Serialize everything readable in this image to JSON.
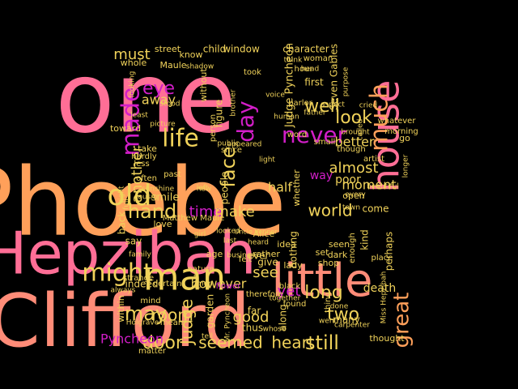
{
  "palette": {
    "pink": "#ff6e96",
    "salmon": "#ff8c78",
    "orange": "#ffa05a",
    "yellow": "#f0d25a",
    "magenta": "#d21ec8",
    "violet": "#b400b4",
    "background": "#000000"
  },
  "words": [
    {
      "text": "one",
      "color": "pink"
    },
    {
      "text": "Phœbe",
      "color": "orange"
    },
    {
      "text": "Hepzibah",
      "color": "pink"
    },
    {
      "text": "Clifford",
      "color": "salmon"
    },
    {
      "text": "house",
      "color": "pink"
    },
    {
      "text": "little",
      "color": "salmon"
    },
    {
      "text": "man",
      "color": "yellow"
    },
    {
      "text": "might",
      "color": "yellow"
    },
    {
      "text": "old",
      "color": "yellow"
    },
    {
      "text": "much",
      "color": "orange"
    },
    {
      "text": "never",
      "color": "magenta"
    },
    {
      "text": "life",
      "color": "yellow"
    },
    {
      "text": "made",
      "color": "magenta"
    },
    {
      "text": "day",
      "color": "magenta"
    },
    {
      "text": "hand",
      "color": "yellow"
    },
    {
      "text": "long",
      "color": "yellow"
    },
    {
      "text": "yet",
      "color": "magenta"
    },
    {
      "text": "great",
      "color": "orange"
    },
    {
      "text": "still",
      "color": "yellow"
    },
    {
      "text": "may",
      "color": "yellow"
    },
    {
      "text": "door",
      "color": "yellow"
    },
    {
      "text": "heart",
      "color": "yellow"
    },
    {
      "text": "seemed",
      "color": "yellow"
    },
    {
      "text": "room",
      "color": "yellow"
    },
    {
      "text": "Judge",
      "color": "yellow"
    },
    {
      "text": "face",
      "color": "yellow"
    },
    {
      "text": "another",
      "color": "yellow"
    },
    {
      "text": "time",
      "color": "magenta"
    },
    {
      "text": "make",
      "color": "yellow"
    },
    {
      "text": "world",
      "color": "yellow"
    },
    {
      "text": "look",
      "color": "yellow"
    },
    {
      "text": "well",
      "color": "yellow"
    },
    {
      "text": "eye",
      "color": "magenta"
    },
    {
      "text": "must",
      "color": "yellow"
    },
    {
      "text": "away",
      "color": "yellow"
    },
    {
      "text": "moment",
      "color": "yellow"
    },
    {
      "text": "however",
      "color": "yellow"
    },
    {
      "text": "see",
      "color": "yellow"
    },
    {
      "text": "half",
      "color": "yellow"
    },
    {
      "text": "two",
      "color": "yellow"
    },
    {
      "text": "good",
      "color": "yellow"
    },
    {
      "text": "better",
      "color": "yellow"
    },
    {
      "text": "almost",
      "color": "yellow"
    },
    {
      "text": "Pyncheon",
      "color": "magenta"
    },
    {
      "text": "Judge Pyncheon",
      "color": "yellow"
    },
    {
      "text": "character",
      "color": "yellow"
    },
    {
      "text": "window",
      "color": "yellow"
    },
    {
      "text": "child",
      "color": "yellow"
    },
    {
      "text": "street",
      "color": "yellow"
    },
    {
      "text": "know",
      "color": "yellow"
    },
    {
      "text": "whole",
      "color": "yellow"
    },
    {
      "text": "Maule",
      "color": "yellow"
    },
    {
      "text": "without",
      "color": "yellow"
    },
    {
      "text": "first",
      "color": "yellow"
    },
    {
      "text": "Seven Gables",
      "color": "yellow"
    },
    {
      "text": "toward",
      "color": "yellow"
    },
    {
      "text": "take",
      "color": "yellow"
    },
    {
      "text": "way",
      "color": "magenta"
    },
    {
      "text": "poor",
      "color": "yellow"
    },
    {
      "text": "come",
      "color": "yellow"
    },
    {
      "text": "kind",
      "color": "yellow"
    },
    {
      "text": "perhaps",
      "color": "yellow"
    },
    {
      "text": "thought",
      "color": "yellow"
    },
    {
      "text": "death",
      "color": "yellow"
    },
    {
      "text": "many",
      "color": "yellow"
    },
    {
      "text": "thus",
      "color": "yellow"
    },
    {
      "text": "far",
      "color": "yellow"
    },
    {
      "text": "along",
      "color": "yellow"
    },
    {
      "text": "indeed",
      "color": "yellow"
    },
    {
      "text": "within",
      "color": "yellow"
    },
    {
      "text": "say",
      "color": "yellow"
    },
    {
      "text": "back",
      "color": "yellow"
    },
    {
      "text": "smile",
      "color": "yellow"
    },
    {
      "text": "nothing",
      "color": "yellow"
    },
    {
      "text": "ever",
      "color": "yellow"
    },
    {
      "text": "give",
      "color": "yellow"
    },
    {
      "text": "lady",
      "color": "yellow"
    },
    {
      "text": "people",
      "color": "yellow"
    },
    {
      "text": "figure",
      "color": "yellow"
    },
    {
      "text": "person",
      "color": "yellow"
    },
    {
      "text": "whether",
      "color": "yellow"
    },
    {
      "text": "garden",
      "color": "yellow"
    },
    {
      "text": "age",
      "color": "yellow"
    },
    {
      "text": "nature",
      "color": "yellow"
    },
    {
      "text": "rather",
      "color": "yellow"
    },
    {
      "text": "set",
      "color": "yellow"
    },
    {
      "text": "shop",
      "color": "yellow"
    },
    {
      "text": "dark",
      "color": "yellow"
    },
    {
      "text": "seen",
      "color": "yellow"
    },
    {
      "text": "word",
      "color": "yellow"
    },
    {
      "text": "hardly",
      "color": "yellow"
    },
    {
      "text": "less",
      "color": "yellow"
    },
    {
      "text": "often",
      "color": "yellow"
    },
    {
      "text": "past",
      "color": "yellow"
    },
    {
      "text": "since",
      "color": "yellow"
    },
    {
      "text": "artist",
      "color": "yellow"
    },
    {
      "text": "though",
      "color": "yellow"
    },
    {
      "text": "small",
      "color": "yellow"
    },
    {
      "text": "go",
      "color": "yellow"
    },
    {
      "text": "whatever",
      "color": "yellow"
    },
    {
      "text": "morning",
      "color": "yellow"
    },
    {
      "text": "open",
      "color": "yellow"
    },
    {
      "text": "place",
      "color": "yellow"
    },
    {
      "text": "enough",
      "color": "yellow"
    },
    {
      "text": "strange",
      "color": "yellow"
    },
    {
      "text": "certain",
      "color": "yellow"
    },
    {
      "text": "mind",
      "color": "yellow"
    },
    {
      "text": "black",
      "color": "yellow"
    },
    {
      "text": "therefore",
      "color": "yellow"
    },
    {
      "text": "idea",
      "color": "yellow"
    },
    {
      "text": "Alice",
      "color": "yellow"
    },
    {
      "text": "found",
      "color": "yellow"
    },
    {
      "text": "thing",
      "color": "yellow"
    },
    {
      "text": "matter",
      "color": "yellow"
    },
    {
      "text": "Uncle Venner",
      "color": "yellow"
    },
    {
      "text": "Matthew Maule",
      "color": "yellow"
    },
    {
      "text": "flower",
      "color": "magenta"
    },
    {
      "text": "mean",
      "color": "yellow"
    },
    {
      "text": "felt",
      "color": "yellow"
    },
    {
      "text": "woman",
      "color": "yellow"
    },
    {
      "text": "hour",
      "color": "yellow"
    },
    {
      "text": "took",
      "color": "yellow"
    },
    {
      "text": "think",
      "color": "yellow"
    },
    {
      "text": "head",
      "color": "yellow"
    },
    {
      "text": "parlor",
      "color": "yellow"
    },
    {
      "text": "love",
      "color": "yellow"
    },
    {
      "text": "full",
      "color": "yellow"
    },
    {
      "text": "beautiful",
      "color": "yellow"
    },
    {
      "text": "sunshine",
      "color": "yellow"
    },
    {
      "text": "shadow",
      "color": "yellow"
    },
    {
      "text": "looking",
      "color": "yellow"
    },
    {
      "text": "stood",
      "color": "yellow"
    },
    {
      "text": "brother",
      "color": "yellow"
    },
    {
      "text": "human",
      "color": "yellow"
    },
    {
      "text": "purpose",
      "color": "yellow"
    },
    {
      "text": "aspect",
      "color": "yellow"
    },
    {
      "text": "picture",
      "color": "yellow"
    },
    {
      "text": "longer",
      "color": "yellow"
    },
    {
      "text": "new",
      "color": "yellow"
    },
    {
      "text": "right",
      "color": "yellow"
    },
    {
      "text": "cousin",
      "color": "yellow"
    },
    {
      "text": "business",
      "color": "yellow"
    },
    {
      "text": "looked",
      "color": "yellow"
    },
    {
      "text": "last",
      "color": "yellow"
    },
    {
      "text": "every",
      "color": "yellow"
    },
    {
      "text": "went",
      "color": "yellow"
    },
    {
      "text": "Miss Hepzibah",
      "color": "yellow"
    },
    {
      "text": "Holgrave",
      "color": "yellow"
    },
    {
      "text": "Mr. Pyncheon",
      "color": "yellow"
    },
    {
      "text": "together",
      "color": "yellow"
    },
    {
      "text": "father",
      "color": "yellow"
    },
    {
      "text": "brought",
      "color": "yellow"
    },
    {
      "text": "voice",
      "color": "yellow"
    },
    {
      "text": "cried",
      "color": "yellow"
    },
    {
      "text": "men",
      "color": "yellow"
    },
    {
      "text": "part",
      "color": "yellow"
    },
    {
      "text": "heard",
      "color": "yellow"
    },
    {
      "text": "whose",
      "color": "yellow"
    },
    {
      "text": "always",
      "color": "yellow"
    },
    {
      "text": "called",
      "color": "yellow"
    },
    {
      "text": "tell",
      "color": "yellow"
    },
    {
      "text": "done",
      "color": "yellow"
    },
    {
      "text": "carpenter",
      "color": "yellow"
    },
    {
      "text": "town",
      "color": "yellow"
    },
    {
      "text": "public",
      "color": "yellow"
    },
    {
      "text": "least",
      "color": "yellow"
    },
    {
      "text": "girl",
      "color": "yellow"
    },
    {
      "text": "family",
      "color": "yellow"
    },
    {
      "text": "appeared",
      "color": "yellow"
    },
    {
      "text": "light",
      "color": "yellow"
    },
    {
      "text": "left",
      "color": "yellow"
    },
    {
      "text": "natural",
      "color": "yellow"
    },
    {
      "text": "sort",
      "color": "yellow"
    },
    {
      "text": "truth",
      "color": "yellow"
    },
    {
      "text": "looking",
      "color": "yellow"
    }
  ]
}
